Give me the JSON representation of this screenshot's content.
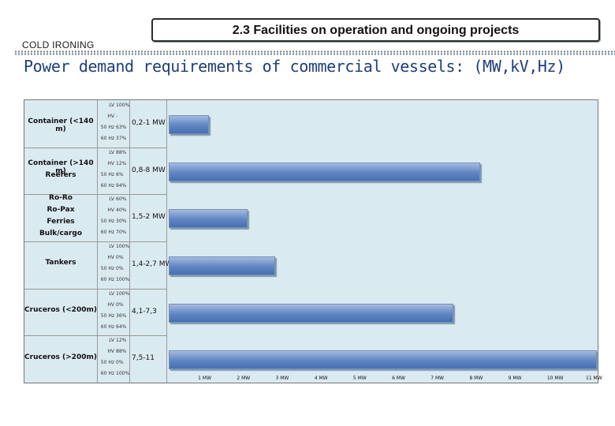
{
  "header": {
    "title": "2.3 Facilities on operation and ongoing projects",
    "section": "COLD IRONING",
    "subtitle": "Power demand requirements of commercial vessels: (MW,kV,Hz)"
  },
  "chart_data": {
    "type": "bar",
    "orientation": "horizontal",
    "xlim": [
      0,
      11
    ],
    "xtick_labels": [
      "1 MW",
      "2 MW",
      "3 MW",
      "4 MW",
      "5 MW",
      "6 MW",
      "7 MW",
      "8 MW",
      "9 MW",
      "10 MW",
      "11 MW"
    ],
    "categories": [
      {
        "label": "Container (<140 m)",
        "specs": [
          [
            "LV",
            "100%"
          ],
          [
            "HV",
            "-"
          ],
          [
            "50 Hz",
            "63%"
          ],
          [
            "60 Hz",
            "37%"
          ]
        ],
        "range": "0,2-1 MW"
      },
      {
        "label": "Container (>140 m)\nReefers",
        "specs": [
          [
            "LV",
            "88%"
          ],
          [
            "HV",
            "12%"
          ],
          [
            "50 Hz",
            "6%"
          ],
          [
            "60 Hz",
            "94%"
          ]
        ],
        "range": "0,8-8 MW"
      },
      {
        "label": "Ro-Ro\nRo-Pax\nFerries\nBulk/cargo",
        "specs": [
          [
            "LV",
            "60%"
          ],
          [
            "HV",
            "40%"
          ],
          [
            "50 Hz",
            "30%"
          ],
          [
            "60 Hz",
            "70%"
          ]
        ],
        "range": "1,5-2 MW"
      },
      {
        "label": "Tankers",
        "specs": [
          [
            "LV",
            "100%"
          ],
          [
            "HV",
            "0%"
          ],
          [
            "50 Hz",
            "0%"
          ],
          [
            "60 Hz",
            "100%"
          ]
        ],
        "range": "1,4-2,7 MW"
      },
      {
        "label": "Cruceros (<200m)",
        "specs": [
          [
            "LV",
            "100%"
          ],
          [
            "HV",
            "0%"
          ],
          [
            "50 Hz",
            "36%"
          ],
          [
            "60 Hz",
            "64%"
          ]
        ],
        "range": "4,1-7,3"
      },
      {
        "label": "Cruceros (>200m)",
        "specs": [
          [
            "LV",
            "12%"
          ],
          [
            "HV",
            "88%"
          ],
          [
            "50 Hz",
            "0%"
          ],
          [
            "60 Hz",
            "100%"
          ]
        ],
        "range": "7,5-11"
      }
    ],
    "values": [
      1,
      8,
      2,
      2.7,
      7.3,
      11
    ],
    "colors": {
      "bar": "#5f85c2",
      "background": "#daeaf1"
    }
  }
}
